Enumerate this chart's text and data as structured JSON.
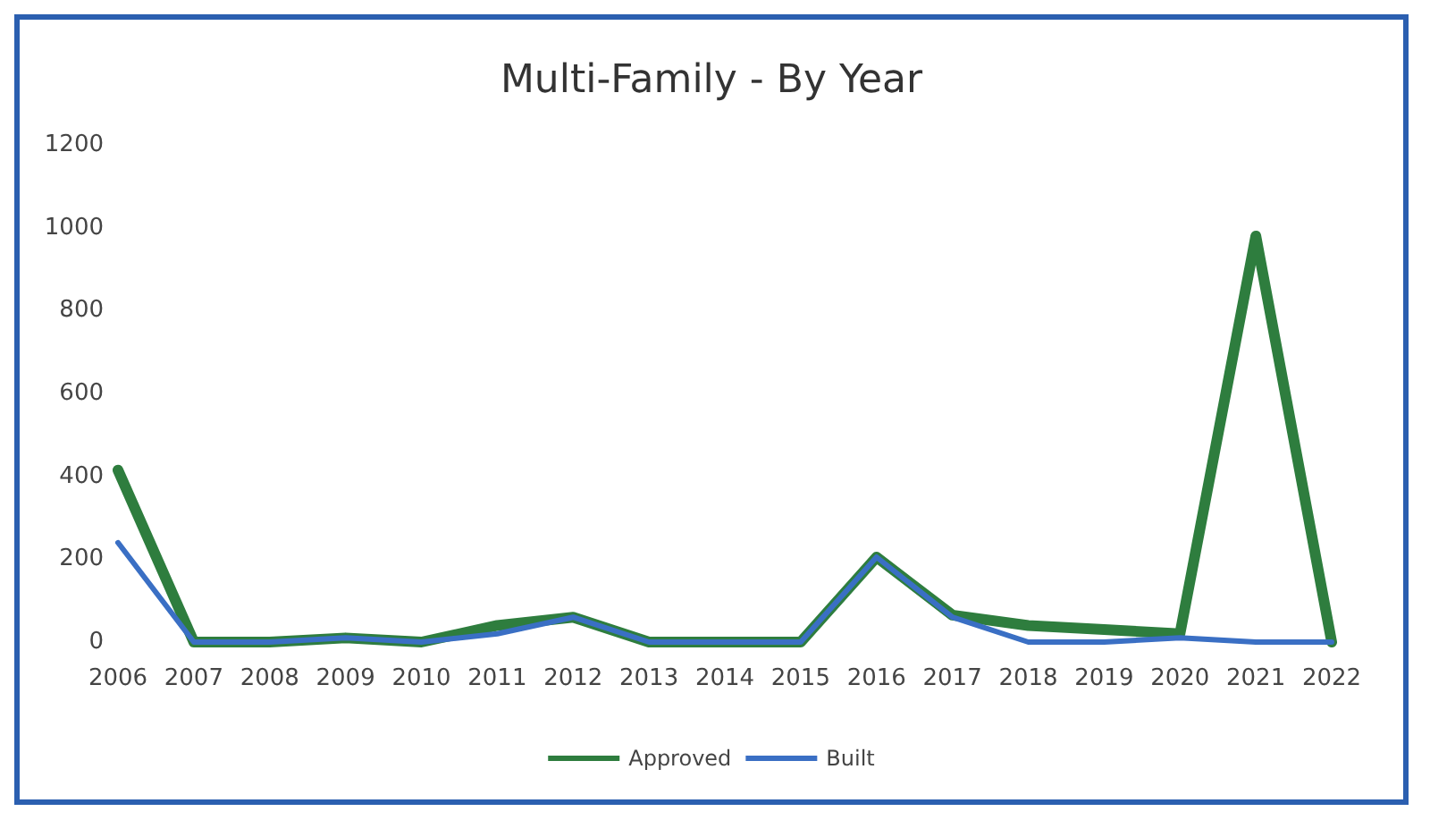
{
  "chart_data": {
    "type": "line",
    "title": "Multi-Family - By Year",
    "categories": [
      "2006",
      "2007",
      "2008",
      "2009",
      "2010",
      "2011",
      "2012",
      "2013",
      "2014",
      "2015",
      "2016",
      "2017",
      "2018",
      "2019",
      "2020",
      "2021",
      "2022"
    ],
    "series": [
      {
        "name": "Approved",
        "color": "#2e7d3e",
        "values": [
          415,
          0,
          0,
          10,
          0,
          40,
          60,
          0,
          0,
          0,
          205,
          65,
          40,
          30,
          20,
          980,
          0
        ]
      },
      {
        "name": "Built",
        "color": "#3a6fc4",
        "values": [
          240,
          0,
          0,
          10,
          0,
          20,
          60,
          0,
          0,
          0,
          205,
          60,
          0,
          0,
          10,
          0,
          0
        ]
      }
    ],
    "ylim": [
      0,
      1200
    ],
    "yticks": [
      0,
      200,
      400,
      600,
      800,
      1000,
      1200
    ],
    "grid": false,
    "legend": "bottom",
    "marker": "none",
    "line_style": "solid"
  }
}
